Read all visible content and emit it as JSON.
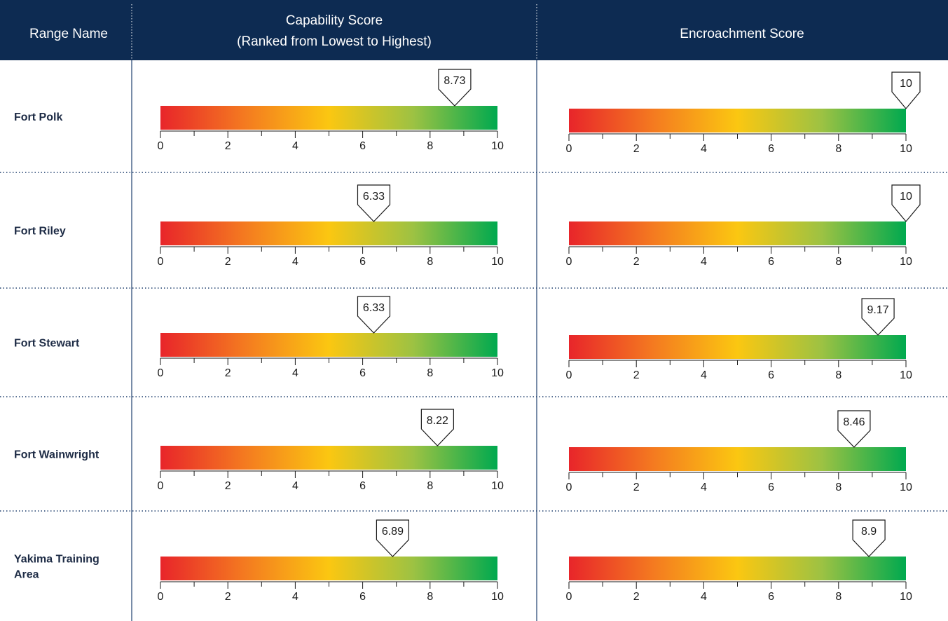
{
  "header": {
    "range_name": "Range Name",
    "capability_line1": "Capability Score",
    "capability_line2": "(Ranked from Lowest to Highest)",
    "encroachment": "Encroachment Score"
  },
  "colors": {
    "header_bg": "#0d2b52",
    "divider": "#1f3f6e",
    "gradient": [
      "#e8252a",
      "#f47a20",
      "#fbc711",
      "#9dc243",
      "#00a94f"
    ]
  },
  "chart_data": {
    "type": "table",
    "axis": {
      "min": 0,
      "max": 10,
      "tick_labels": [
        "0",
        "2",
        "4",
        "6",
        "8",
        "10"
      ],
      "minor_step": 1
    },
    "columns": [
      "Range Name",
      "Capability Score",
      "Encroachment Score"
    ],
    "rows": [
      {
        "name": [
          "Fort Polk"
        ],
        "capability": 8.73,
        "capability_label": "8.73",
        "encroachment": 10,
        "encroachment_label": "10"
      },
      {
        "name": [
          "Fort Riley"
        ],
        "capability": 6.33,
        "capability_label": "6.33",
        "encroachment": 10,
        "encroachment_label": "10"
      },
      {
        "name": [
          "Fort Stewart"
        ],
        "capability": 6.33,
        "capability_label": "6.33",
        "encroachment": 9.17,
        "encroachment_label": "9.17"
      },
      {
        "name": [
          "Fort Wainwright"
        ],
        "capability": 8.22,
        "capability_label": "8.22",
        "encroachment": 8.46,
        "encroachment_label": "8.46"
      },
      {
        "name": [
          "Yakima Training",
          "Area"
        ],
        "capability": 6.89,
        "capability_label": "6.89",
        "encroachment": 8.9,
        "encroachment_label": "8.9"
      }
    ]
  }
}
